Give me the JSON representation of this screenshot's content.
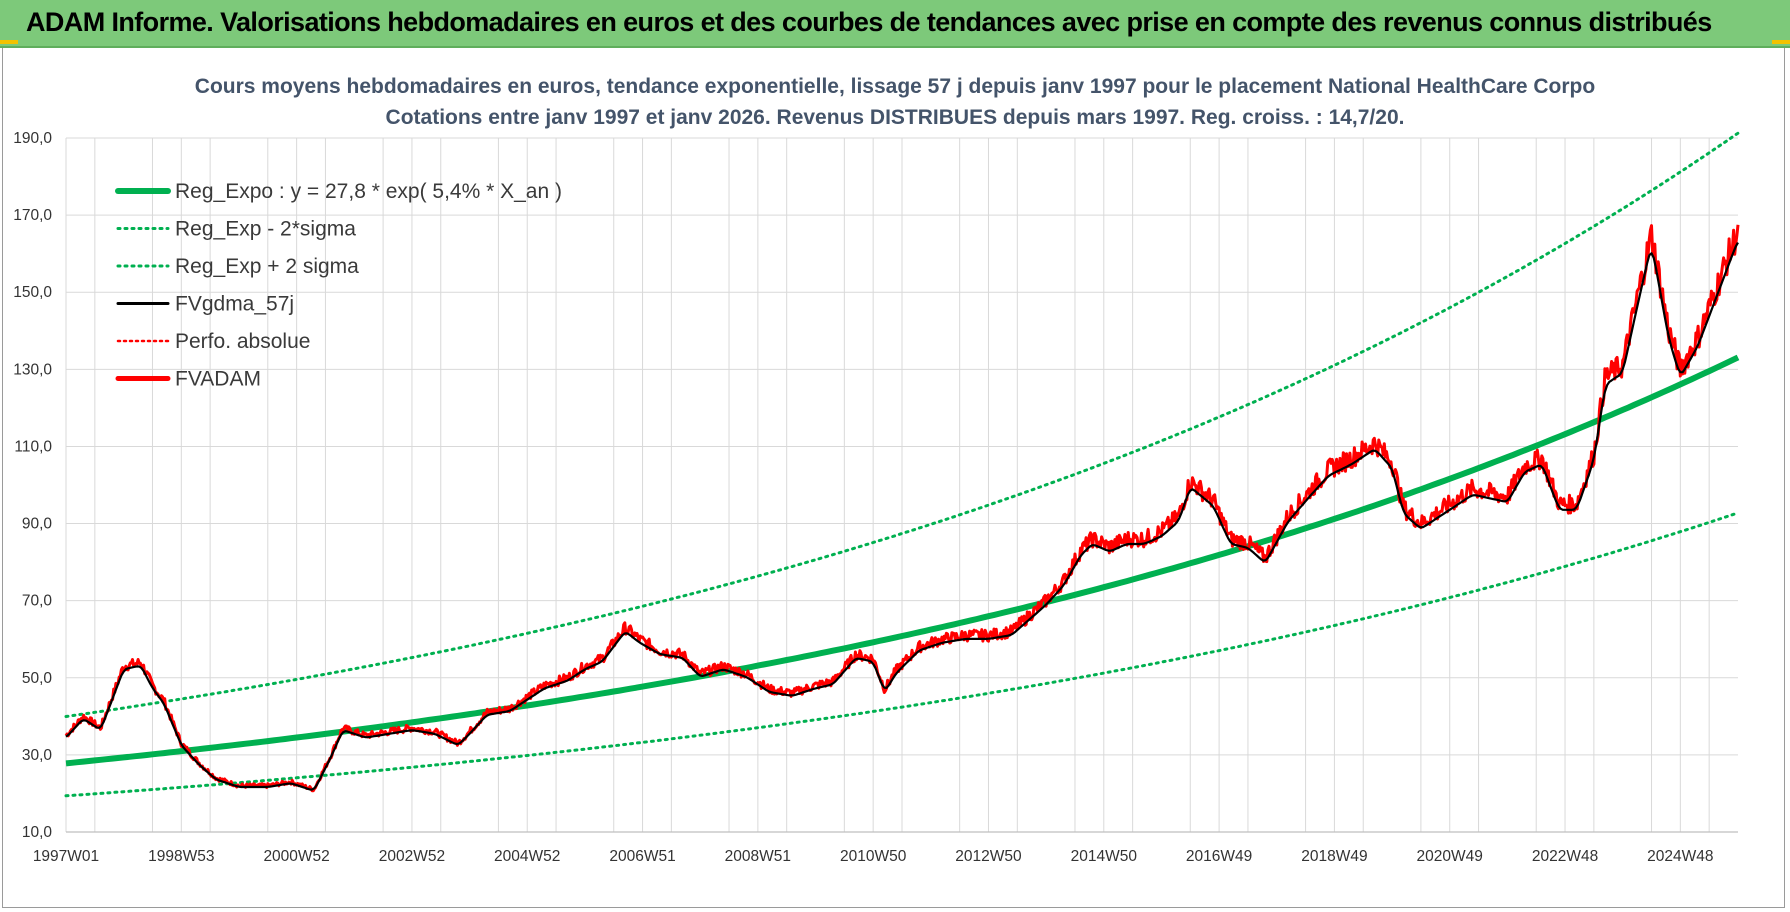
{
  "header": {
    "title": "ADAM Informe. Valorisations hebdomadaires en euros et des courbes de tendances avec prise en compte des revenus connus distribués"
  },
  "colors": {
    "header_bg": "#7dc97a",
    "reg_expo": "#00b050",
    "sigma_lines": "#00b050",
    "smoothed": "#000000",
    "perfo": "#ff0000",
    "fvadam": "#ff0000",
    "grid": "#d9d9d9"
  },
  "chart_data": {
    "type": "line",
    "title_line1": "Cours moyens hebdomadaires en euros, tendance exponentielle, lissage 57 j depuis janv 1997 pour le placement National HealthCare Corpo",
    "title_line2": "Cotations entre janv 1997 et janv 2026. Revenus DISTRIBUES depuis mars 1997. Reg. croiss. : 14,7/20.",
    "xlabel": "",
    "ylabel": "",
    "ylim": [
      10,
      190
    ],
    "xlim": [
      1997.0,
      2026.0
    ],
    "y_ticks": [
      "190,0",
      "170,0",
      "150,0",
      "130,0",
      "110,0",
      "90,0",
      "70,0",
      "50,0",
      "30,0",
      "10,0"
    ],
    "x_tick_labels": [
      {
        "label": "1997W01",
        "year": 1997.0
      },
      {
        "label": "1998W53",
        "year": 1999.0
      },
      {
        "label": "2000W52",
        "year": 2001.0
      },
      {
        "label": "2002W52",
        "year": 2003.0
      },
      {
        "label": "2004W52",
        "year": 2005.0
      },
      {
        "label": "2006W51",
        "year": 2007.0
      },
      {
        "label": "2008W51",
        "year": 2009.0
      },
      {
        "label": "2010W50",
        "year": 2011.0
      },
      {
        "label": "2012W50",
        "year": 2013.0
      },
      {
        "label": "2014W50",
        "year": 2015.0
      },
      {
        "label": "2016W49",
        "year": 2017.0
      },
      {
        "label": "2018W49",
        "year": 2019.0
      },
      {
        "label": "2020W49",
        "year": 2021.0
      },
      {
        "label": "2022W48",
        "year": 2023.0
      },
      {
        "label": "2024W48",
        "year": 2025.0
      }
    ],
    "grid": true,
    "legend_position": "top-left",
    "regression": {
      "a": 27.8,
      "rate": 0.054,
      "x0": 1997.0
    },
    "sigma_factor_lower": 0.697,
    "sigma_factor_upper": 1.437,
    "series": [
      {
        "name": "Reg_Expo : y = 27,8 * exp( 5,4% *  X_an )",
        "style": "solid-thick",
        "color": "#00b050"
      },
      {
        "name": "Reg_Exp - 2*sigma",
        "style": "dotted",
        "color": "#00b050"
      },
      {
        "name": "Reg_Exp + 2 sigma",
        "style": "dotted",
        "color": "#00b050"
      },
      {
        "name": "FVgdma_57j",
        "style": "solid",
        "color": "#000000"
      },
      {
        "name": "Perfo. absolue",
        "style": "dotted",
        "color": "#ff0000"
      },
      {
        "name": "FVADAM",
        "style": "solid-thick",
        "color": "#ff0000",
        "x": [
          1997.0,
          1997.3,
          1997.6,
          1997.8,
          1998.0,
          1998.3,
          1998.5,
          1998.7,
          1999.0,
          1999.3,
          1999.6,
          2000.0,
          2000.5,
          2000.9,
          2001.3,
          2001.6,
          2001.8,
          2002.2,
          2002.6,
          2003.0,
          2003.4,
          2003.8,
          2004.0,
          2004.3,
          2004.7,
          2005.0,
          2005.3,
          2005.7,
          2006.0,
          2006.3,
          2006.7,
          2006.95,
          2007.3,
          2007.7,
          2008.0,
          2008.4,
          2008.8,
          2009.2,
          2009.6,
          2010.0,
          2010.3,
          2010.7,
          2011.0,
          2011.2,
          2011.4,
          2011.8,
          2012.2,
          2012.6,
          2013.0,
          2013.4,
          2013.7,
          2014.0,
          2014.3,
          2014.6,
          2014.8,
          2015.1,
          2015.4,
          2015.7,
          2016.0,
          2016.3,
          2016.5,
          2016.9,
          2017.2,
          2017.5,
          2017.8,
          2018.2,
          2018.6,
          2018.9,
          2019.3,
          2019.7,
          2020.0,
          2020.2,
          2020.5,
          2020.8,
          2021.1,
          2021.4,
          2021.7,
          2022.0,
          2022.3,
          2022.6,
          2022.9,
          2023.2,
          2023.5,
          2023.7,
          2024.0,
          2024.2,
          2024.5,
          2024.8,
          2025.0,
          2025.3,
          2025.6,
          2025.9,
          2026.0
        ],
        "values": [
          35,
          40,
          37,
          45,
          53,
          54,
          48,
          44,
          33,
          28,
          24,
          22,
          22,
          23,
          21,
          30,
          37,
          35,
          36,
          37,
          36,
          33,
          36,
          41,
          42,
          45,
          48,
          50,
          53,
          55,
          63,
          60,
          57,
          56,
          51,
          53,
          51,
          47,
          46,
          48,
          49,
          56,
          55,
          47,
          52,
          58,
          60,
          61,
          61,
          62,
          66,
          70,
          75,
          83,
          86,
          84,
          86,
          86,
          88,
          92,
          101,
          96,
          86,
          85,
          81,
          92,
          99,
          104,
          107,
          111,
          106,
          94,
          90,
          93,
          96,
          99,
          98,
          97,
          105,
          107,
          95,
          95,
          108,
          128,
          131,
          145,
          165,
          140,
          130,
          138,
          150,
          162,
          166
        ]
      }
    ]
  }
}
